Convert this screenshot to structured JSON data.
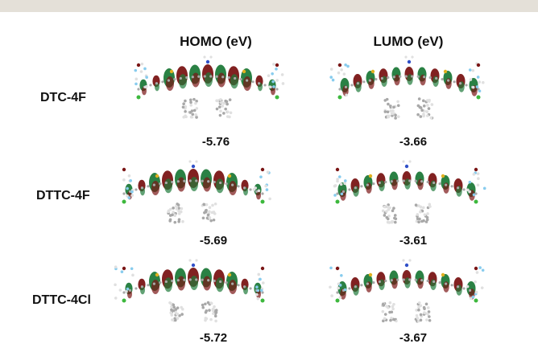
{
  "header": {
    "homo": "HOMO (eV)",
    "lumo": "LUMO (eV)"
  },
  "rows": [
    {
      "label": "DTC-4F",
      "homo": "-5.76",
      "lumo": "-3.66"
    },
    {
      "label": "DTTC-4F",
      "homo": "-5.69",
      "lumo": "-3.61"
    },
    {
      "label": "DTTC-4Cl",
      "homo": "-5.72",
      "lumo": "-3.67"
    }
  ],
  "colors": {
    "orbital_positive": "#1f7a3a",
    "orbital_negative": "#7a1515",
    "carbon": "#a8a8a8",
    "hydrogen": "#e0e0e0",
    "fluorine": "#88ccee",
    "chlorine": "#3db83d",
    "sulfur": "#e0b020",
    "nitrogen": "#3050c8",
    "oxygen": "#d02020"
  }
}
